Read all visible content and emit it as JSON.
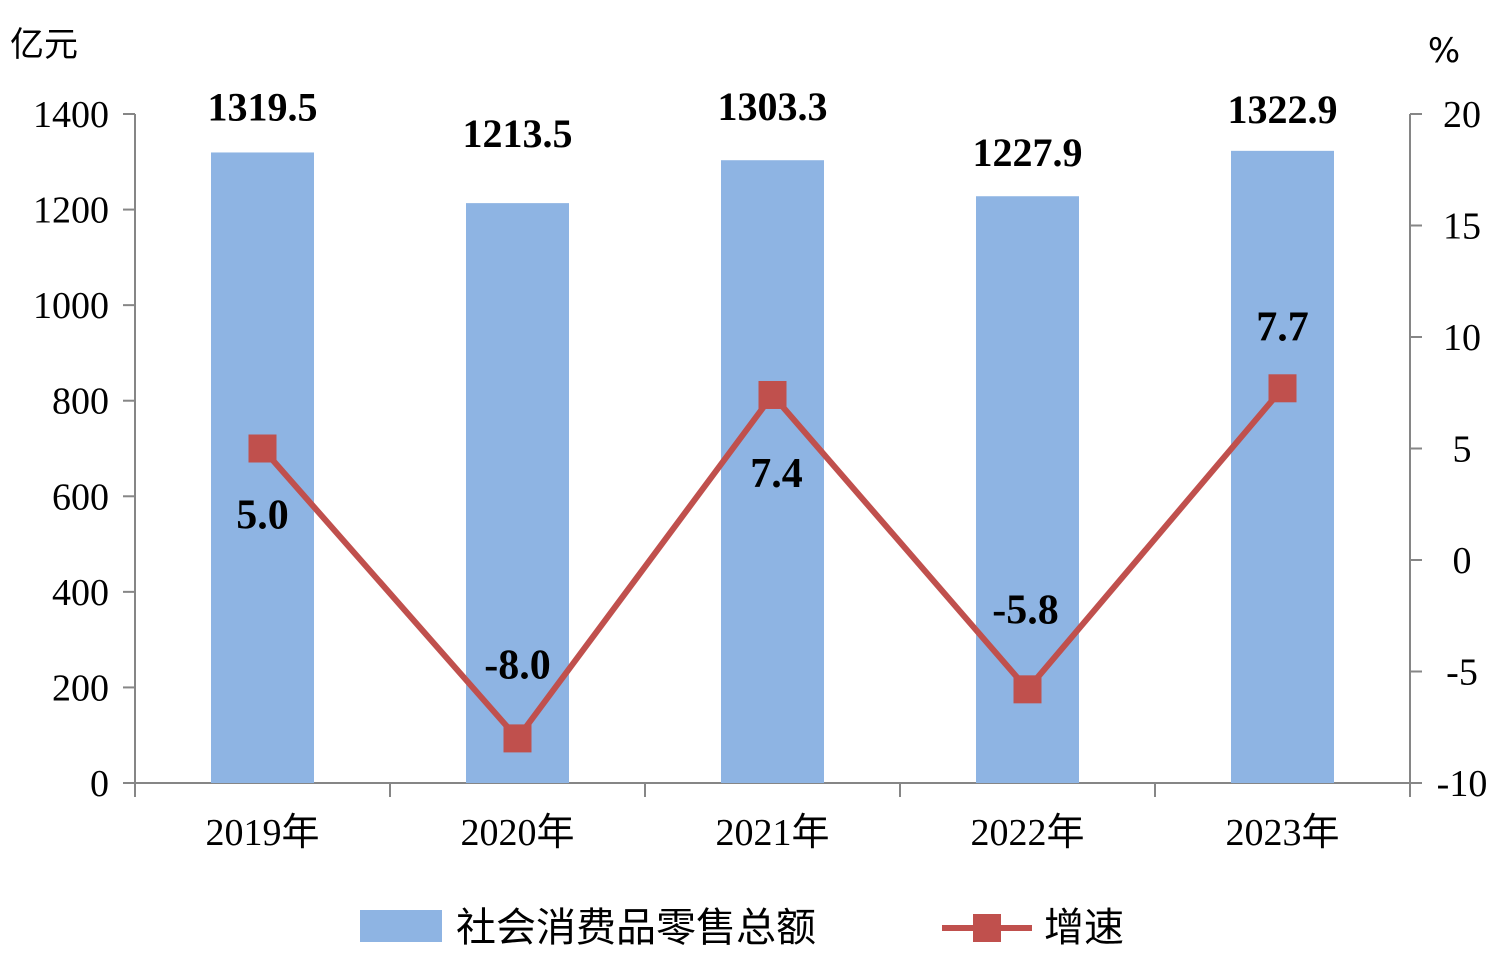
{
  "chart_data": {
    "type": "bar",
    "categories": [
      "2019年",
      "2020年",
      "2021年",
      "2022年",
      "2023年"
    ],
    "series": [
      {
        "name": "社会消费品零售总额",
        "type": "bar",
        "axis": "left",
        "values": [
          1319.5,
          1213.5,
          1303.3,
          1227.9,
          1322.9
        ],
        "value_labels": [
          "1319.5",
          "1213.5",
          "1303.3",
          "1227.9",
          "1322.9"
        ],
        "color": "#8EB4E3"
      },
      {
        "name": "增速",
        "type": "line",
        "axis": "right",
        "values": [
          5.0,
          -8.0,
          7.4,
          -5.8,
          7.7
        ],
        "value_labels": [
          "5.0",
          "-8.0",
          "7.4",
          "-5.8",
          "7.7"
        ],
        "color": "#C0504D",
        "marker": "square"
      }
    ],
    "y_left": {
      "unit": "亿元",
      "ylim": [
        0,
        1400
      ],
      "ticks": [
        0,
        200,
        400,
        600,
        800,
        1000,
        1200,
        1400
      ]
    },
    "y_right": {
      "unit": "%",
      "ylim": [
        -10,
        20
      ],
      "ticks": [
        -10,
        -5,
        0,
        5,
        10,
        15,
        20
      ]
    },
    "grid": false,
    "legend": "bottom"
  }
}
